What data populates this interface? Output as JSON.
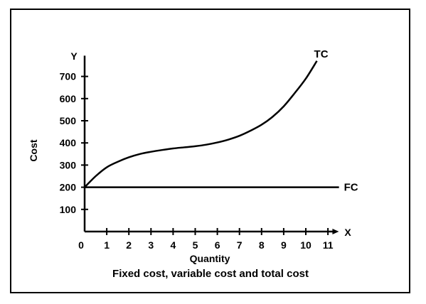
{
  "chart_data": {
    "type": "line",
    "title": "",
    "caption": "Fixed cost, variable cost and total cost",
    "xlabel": "Quantity",
    "ylabel": "Cost",
    "x_axis_letter": "X",
    "y_axis_letter": "Y",
    "xlim": [
      0,
      11.3
    ],
    "ylim": [
      0,
      800
    ],
    "x_ticks": [
      0,
      1,
      2,
      3,
      4,
      5,
      6,
      7,
      8,
      9,
      10,
      11
    ],
    "y_ticks": [
      100,
      200,
      300,
      400,
      500,
      600,
      700
    ],
    "grid": false,
    "legend": "none",
    "series": [
      {
        "name": "TC",
        "color": "#000000",
        "x": [
          0,
          0.5,
          1,
          1.5,
          2,
          2.5,
          3,
          3.5,
          4,
          4.5,
          5,
          5.5,
          6,
          6.5,
          7,
          7.5,
          8,
          8.5,
          9,
          9.5,
          10,
          10.5
        ],
        "y": [
          200,
          250,
          290,
          315,
          335,
          350,
          360,
          368,
          375,
          380,
          385,
          392,
          402,
          415,
          432,
          455,
          482,
          518,
          565,
          625,
          690,
          770
        ]
      },
      {
        "name": "FC",
        "color": "#000000",
        "x": [
          0,
          11.5
        ],
        "y": [
          200,
          200
        ]
      }
    ]
  }
}
